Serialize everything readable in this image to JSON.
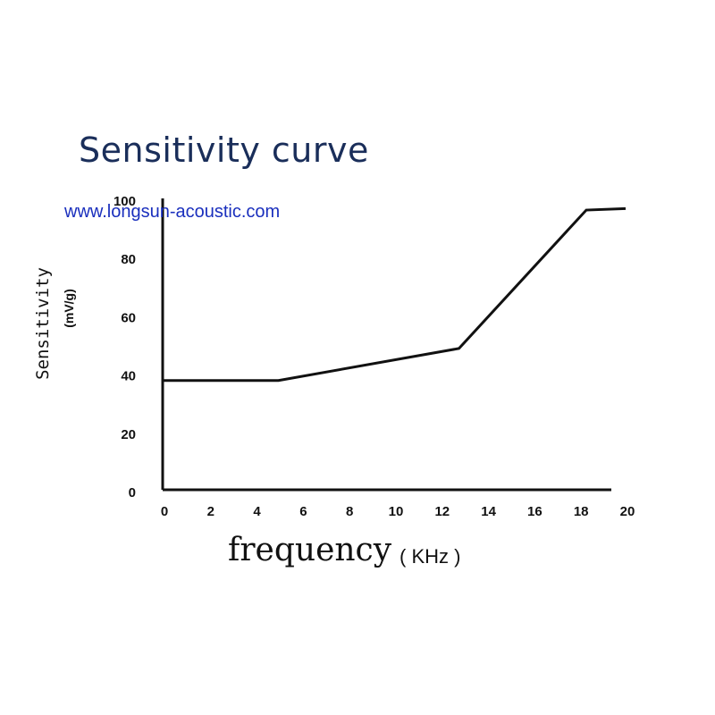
{
  "chart_data": {
    "type": "line",
    "title": "Sensitivity curve",
    "watermark": "www.longsun-acoustic.com",
    "xlabel": "frequency",
    "xlabel_unit": "( KHz )",
    "ylabel": "Sensitivity",
    "ylabel_unit": "(mV/g)",
    "xlim": [
      0,
      20
    ],
    "ylim": [
      0,
      100
    ],
    "x_ticks": [
      "0",
      "2",
      "4",
      "6",
      "8",
      "10",
      "12",
      "14",
      "16",
      "18",
      "20"
    ],
    "y_ticks": [
      "0",
      "20",
      "40",
      "60",
      "80",
      "100"
    ],
    "grid": false,
    "series": [
      {
        "x": [
          0,
          5,
          12.8,
          18.3,
          20
        ],
        "y": [
          37.5,
          37.5,
          48.5,
          96,
          96.5
        ]
      }
    ]
  }
}
